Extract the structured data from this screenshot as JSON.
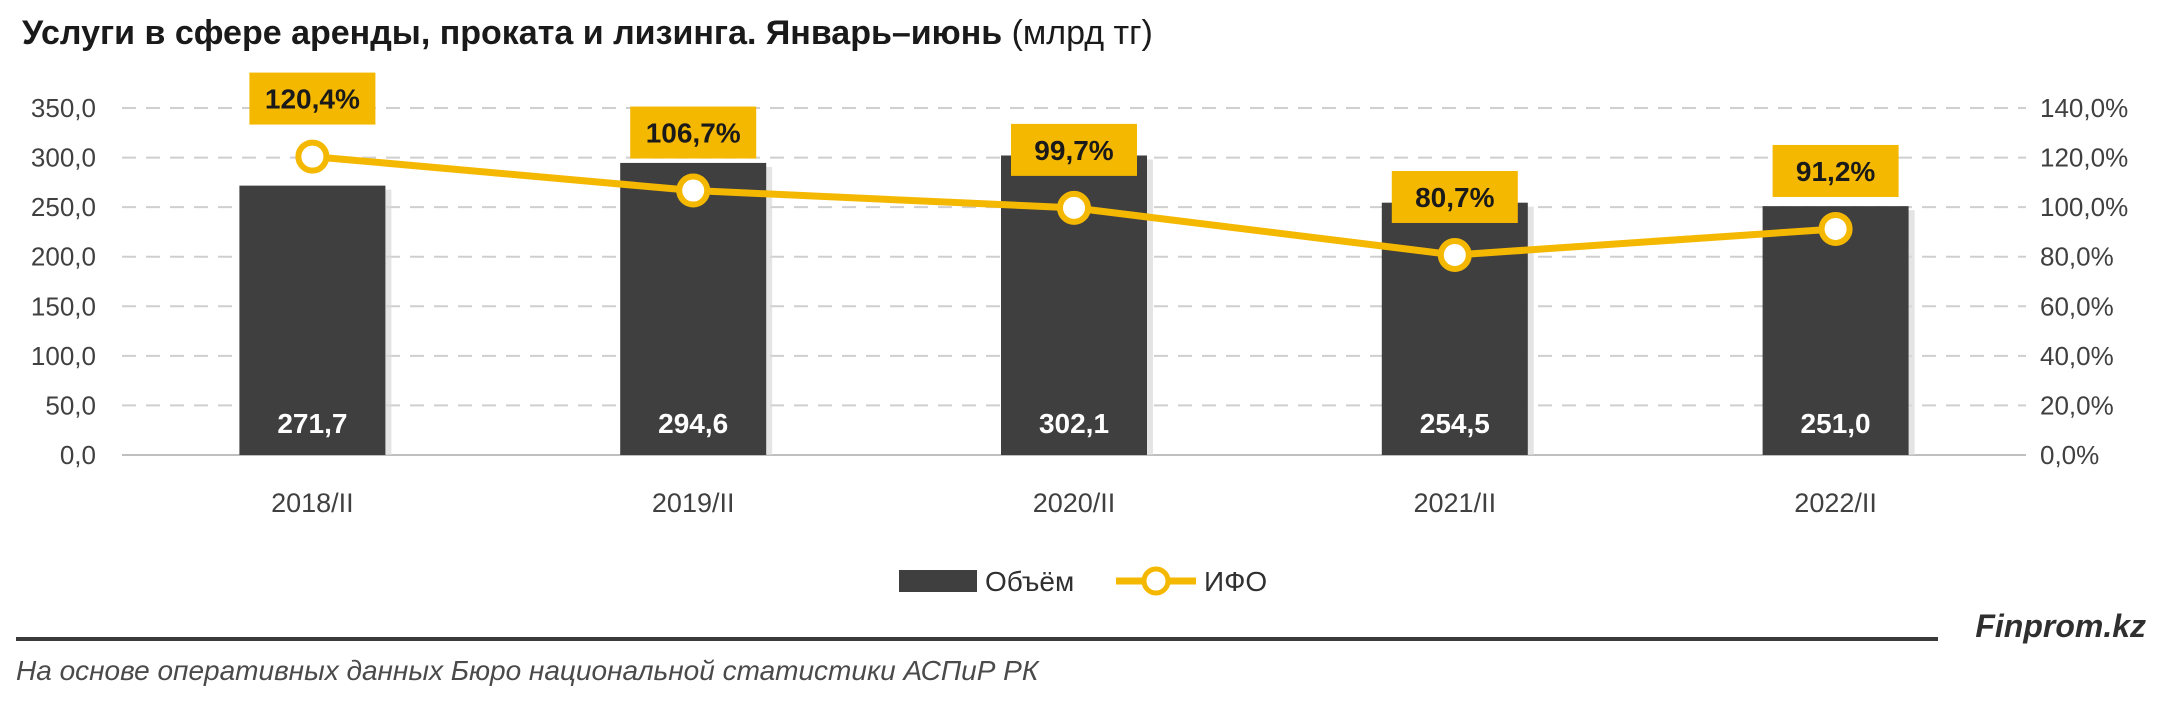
{
  "header": {
    "title": "Услуги в сфере аренды, проката и лизинга. Январь–июнь",
    "unit": "(млрд тг)"
  },
  "chart_data": {
    "type": "bar",
    "categories": [
      "2018/II",
      "2019/II",
      "2020/II",
      "2021/II",
      "2022/II"
    ],
    "series": [
      {
        "name": "Объём",
        "type": "bar",
        "axis": "left",
        "values": [
          271.7,
          294.6,
          302.1,
          254.5,
          251.0
        ],
        "labels": [
          "271,7",
          "294,6",
          "302,1",
          "254,5",
          "251,0"
        ],
        "color": "#3f3f3f"
      },
      {
        "name": "ИФО",
        "type": "line",
        "axis": "right",
        "values": [
          120.4,
          106.7,
          99.7,
          80.7,
          91.2
        ],
        "labels": [
          "120,4%",
          "106,7%",
          "99,7%",
          "80,7%",
          "91,2%"
        ],
        "color": "#f5b800"
      }
    ],
    "y_left": {
      "min": 0,
      "max": 350,
      "ticks": [
        "0,0",
        "50,0",
        "100,0",
        "150,0",
        "200,0",
        "250,0",
        "300,0",
        "350,0"
      ]
    },
    "y_right": {
      "min": 0,
      "max": 140,
      "ticks": [
        "0,0%",
        "20,0%",
        "40,0%",
        "60,0%",
        "80,0%",
        "100,0%",
        "120,0%",
        "140,0%"
      ]
    },
    "grid": "horizontal-dashed",
    "legend_position": "bottom"
  },
  "footer": {
    "brand": "Finprom.kz",
    "source": "На основе оперативных данных Бюро национальной статистики АСПиР РК"
  }
}
